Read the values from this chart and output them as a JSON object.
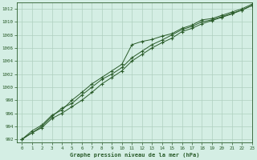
{
  "xlabel": "Graphe pression niveau de la mer (hPa)",
  "xlim": [
    -0.5,
    23
  ],
  "ylim": [
    991.5,
    1013
  ],
  "yticks": [
    992,
    994,
    996,
    998,
    1000,
    1002,
    1004,
    1006,
    1008,
    1010,
    1012
  ],
  "xticks": [
    0,
    1,
    2,
    3,
    4,
    5,
    6,
    7,
    8,
    9,
    10,
    11,
    12,
    13,
    14,
    15,
    16,
    17,
    18,
    19,
    20,
    21,
    22,
    23
  ],
  "bg_color": "#d4eee4",
  "grid_color": "#b0d0c0",
  "line_color": "#2a5c2a",
  "series1": [
    992.0,
    993.3,
    994.2,
    995.7,
    996.5,
    998.0,
    999.2,
    1000.5,
    1001.5,
    1002.5,
    1003.5,
    1006.5,
    1007.0,
    1007.3,
    1007.8,
    1008.2,
    1009.0,
    1009.5,
    1010.3,
    1010.5,
    1011.0,
    1011.5,
    1012.0,
    1012.7
  ],
  "series2": [
    992.0,
    993.0,
    994.0,
    995.5,
    996.8,
    997.5,
    998.8,
    1000.0,
    1001.2,
    1002.0,
    1003.0,
    1004.5,
    1005.5,
    1006.5,
    1007.2,
    1008.0,
    1008.8,
    1009.3,
    1010.0,
    1010.3,
    1010.8,
    1011.3,
    1011.8,
    1012.5
  ],
  "series3": [
    992.0,
    993.0,
    993.8,
    995.2,
    996.0,
    997.0,
    998.0,
    999.2,
    1000.5,
    1001.5,
    1002.5,
    1004.0,
    1005.0,
    1006.0,
    1006.8,
    1007.5,
    1008.5,
    1009.0,
    1009.7,
    1010.2,
    1010.7,
    1011.2,
    1011.8,
    1012.5
  ]
}
